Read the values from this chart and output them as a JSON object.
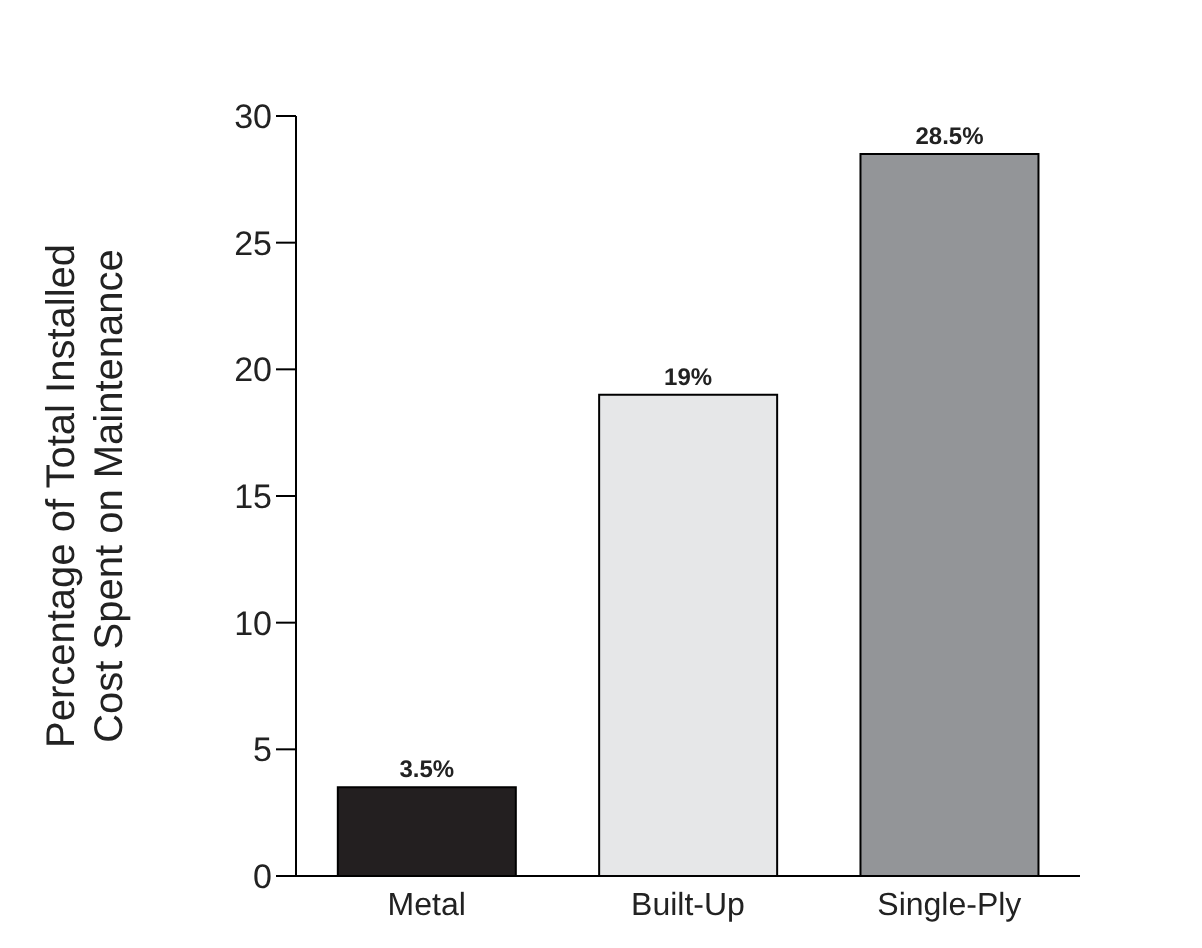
{
  "chart_data": {
    "type": "bar",
    "ylabel": "Percentage of Total Installed\nCost Spent on Maintenance",
    "categories": [
      "Metal",
      "Built-Up",
      "Single-Ply"
    ],
    "values": [
      3.5,
      19,
      28.5
    ],
    "colors": [
      "#231f20",
      "#e6e7e8",
      "#939598"
    ],
    "value_labels": [
      "3.5%",
      "19%",
      "28.5%"
    ],
    "ylim": [
      0,
      30
    ],
    "yticks": [
      0,
      5,
      10,
      15,
      20,
      25,
      30
    ],
    "grid": false,
    "legend": false
  }
}
